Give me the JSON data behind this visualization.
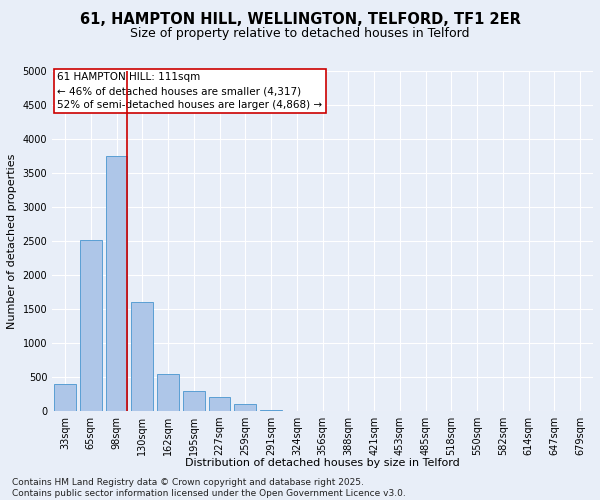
{
  "title_line1": "61, HAMPTON HILL, WELLINGTON, TELFORD, TF1 2ER",
  "title_line2": "Size of property relative to detached houses in Telford",
  "xlabel": "Distribution of detached houses by size in Telford",
  "ylabel": "Number of detached properties",
  "categories": [
    "33sqm",
    "65sqm",
    "98sqm",
    "130sqm",
    "162sqm",
    "195sqm",
    "227sqm",
    "259sqm",
    "291sqm",
    "324sqm",
    "356sqm",
    "388sqm",
    "421sqm",
    "453sqm",
    "485sqm",
    "518sqm",
    "550sqm",
    "582sqm",
    "614sqm",
    "647sqm",
    "679sqm"
  ],
  "values": [
    400,
    2520,
    3750,
    1600,
    550,
    300,
    200,
    100,
    10,
    0,
    0,
    0,
    0,
    0,
    0,
    0,
    0,
    0,
    0,
    0,
    0
  ],
  "bar_color": "#aec6e8",
  "bar_edge_color": "#5a9fd4",
  "vline_color": "#cc0000",
  "annotation_text": "61 HAMPTON HILL: 111sqm\n← 46% of detached houses are smaller (4,317)\n52% of semi-detached houses are larger (4,868) →",
  "annotation_box_color": "#ffffff",
  "annotation_box_edge": "#cc0000",
  "ylim": [
    0,
    5000
  ],
  "yticks": [
    0,
    500,
    1000,
    1500,
    2000,
    2500,
    3000,
    3500,
    4000,
    4500,
    5000
  ],
  "background_color": "#e8eef8",
  "grid_color": "#ffffff",
  "footer_line1": "Contains HM Land Registry data © Crown copyright and database right 2025.",
  "footer_line2": "Contains public sector information licensed under the Open Government Licence v3.0.",
  "title_fontsize": 10.5,
  "subtitle_fontsize": 9,
  "axis_label_fontsize": 8,
  "tick_fontsize": 7,
  "annotation_fontsize": 7.5,
  "footer_fontsize": 6.5
}
